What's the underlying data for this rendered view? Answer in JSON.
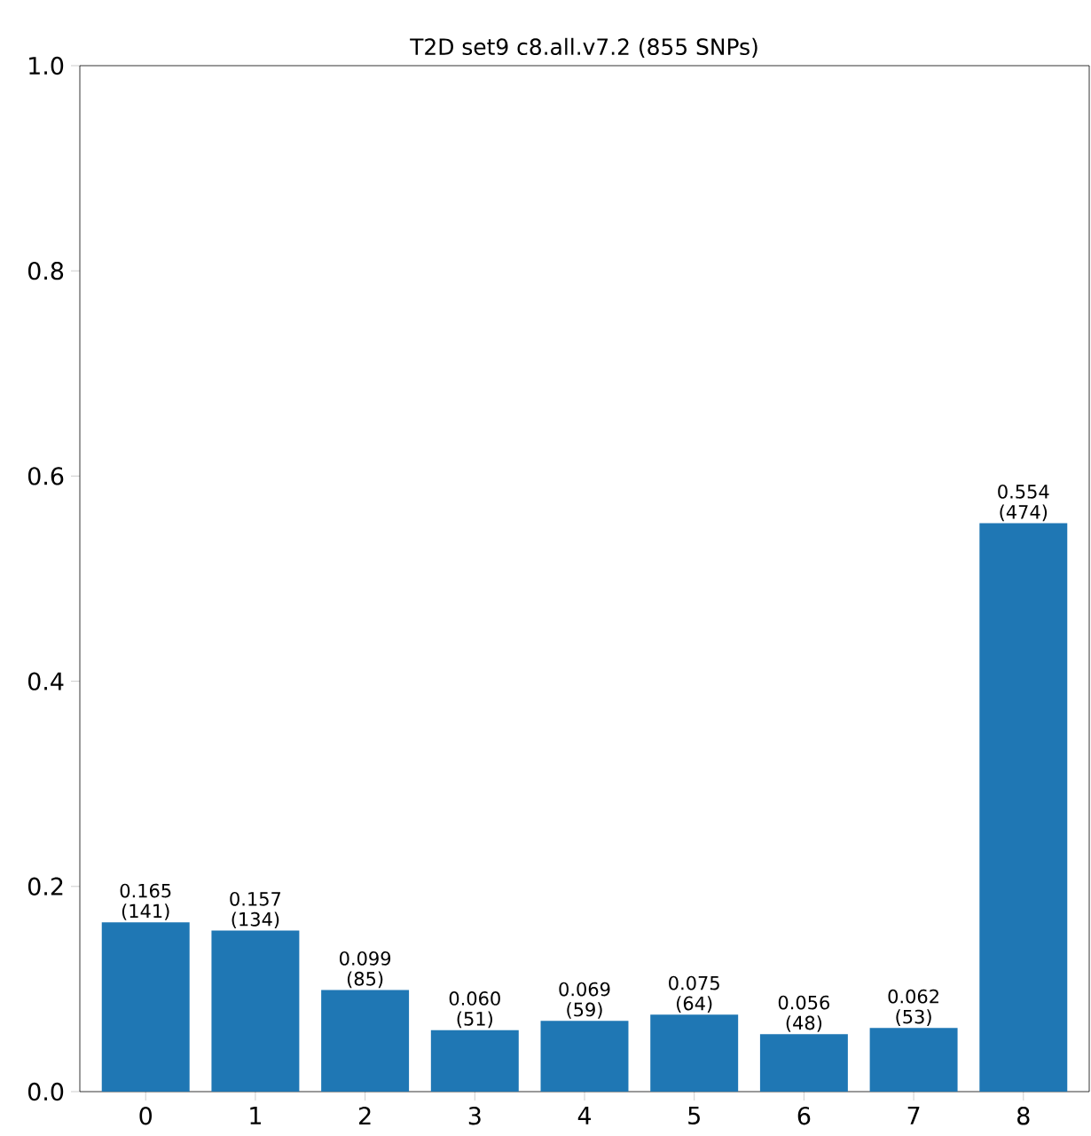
{
  "chart_data": {
    "type": "bar",
    "title": "T2D set9 c8.all.v7.2 (855 SNPs)",
    "categories": [
      "0",
      "1",
      "2",
      "3",
      "4",
      "5",
      "6",
      "7",
      "8"
    ],
    "values": [
      0.165,
      0.157,
      0.099,
      0.06,
      0.069,
      0.075,
      0.056,
      0.062,
      0.554
    ],
    "value_labels": [
      "0.165 (141)",
      "0.157 (134)",
      "0.099 (85)",
      "0.060 (51)",
      "0.069 (59)",
      "0.075 (64)",
      "0.056 (48)",
      "0.062 (53)",
      "0.554 (474)"
    ],
    "color": "#1f77b4",
    "ylim": [
      0,
      1
    ],
    "yticks": [
      {
        "value": 0,
        "label": "0.0"
      },
      0.2,
      0.4,
      0.6,
      0.8,
      {
        "value": 1,
        "label": "1.0"
      }
    ],
    "grid": false
  }
}
